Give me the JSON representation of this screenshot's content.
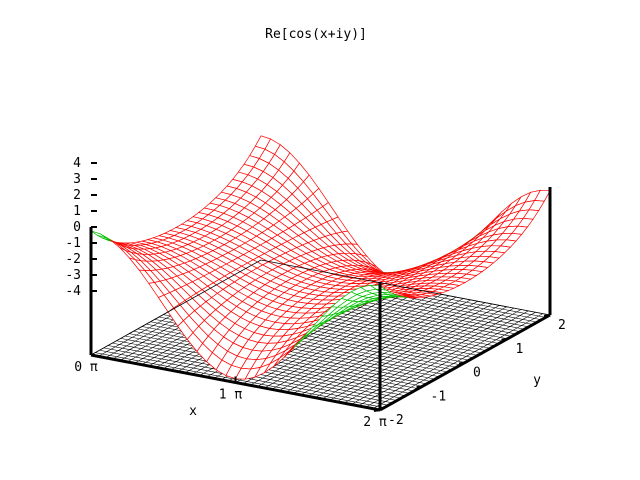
{
  "chart_data": {
    "type": "surface",
    "title": "Re[cos(x+iy)]",
    "function": "Re[cos(x+iy)] = cos(x)·cosh(y)",
    "xlabel": "x",
    "ylabel": "y",
    "xlim": [
      0,
      6.283185
    ],
    "ylim": [
      -2,
      2
    ],
    "zlim": [
      -4,
      4
    ],
    "x_ticks": [
      "0 π",
      "1 π",
      "2 π"
    ],
    "y_ticks": [
      "-2",
      "-1",
      "0",
      "1",
      "2"
    ],
    "z_ticks": [
      "4",
      "3",
      "2",
      "1",
      "0",
      "-1",
      "-2",
      "-3",
      "-4"
    ],
    "grid_on_base": true,
    "colors": {
      "surface_top": "#ff0000",
      "surface_bottom": "#00c000",
      "axes": "#000000",
      "base_grid": "#000000"
    },
    "series": [
      {
        "x": 0.0,
        "z_at_y": {
          "-2": 3.76,
          "-1": 1.54,
          "0": 1.0,
          "1": 1.54,
          "2": 3.76
        }
      },
      {
        "x": 1.5708,
        "z_at_y": {
          "-2": 0.0,
          "-1": 0.0,
          "0": 0.0,
          "1": 0.0,
          "2": 0.0
        }
      },
      {
        "x": 3.1416,
        "z_at_y": {
          "-2": -3.76,
          "-1": -1.54,
          "0": -1.0,
          "1": -1.54,
          "2": -3.76
        }
      },
      {
        "x": 4.7124,
        "z_at_y": {
          "-2": 0.0,
          "-1": 0.0,
          "0": 0.0,
          "1": 0.0,
          "2": 0.0
        }
      },
      {
        "x": 6.2832,
        "z_at_y": {
          "-2": 3.76,
          "-1": 1.54,
          "0": 1.0,
          "1": 1.54,
          "2": 3.76
        }
      }
    ]
  }
}
